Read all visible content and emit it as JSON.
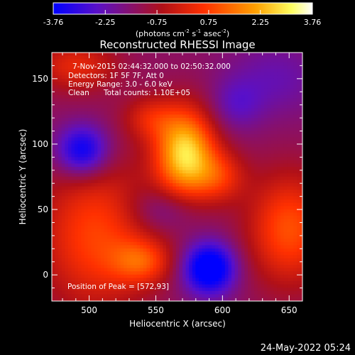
{
  "chart_data": {
    "type": "heatmap",
    "title": "Reconstructed RHESSI Image",
    "xlabel": "Heliocentric X (arcsec)",
    "ylabel": "Heliocentric Y (arcsec)",
    "xlim": [
      472,
      660
    ],
    "ylim": [
      -20,
      170
    ],
    "x_ticks": [
      500,
      550,
      600,
      650
    ],
    "y_ticks": [
      0,
      50,
      100,
      150
    ],
    "colorbar": {
      "ticks": [
        "-3.76",
        "-2.25",
        "-0.75",
        "0.75",
        "2.25",
        "3.76"
      ],
      "range": [
        -3.76,
        3.76
      ],
      "units_label": "(photons cm",
      "units_sup1": "-2",
      "units_mid": " s",
      "units_sup2": "-1",
      "units_mid2": " asec",
      "units_sup3": "-2",
      "units_end": ")",
      "colors": [
        "#0000ff",
        "#5a10c8",
        "#b01018",
        "#ff3000",
        "#ffa000",
        "#ffff60",
        "#ffffff"
      ]
    },
    "annotations": {
      "time_range": "7-Nov-2015 02:44:32.000 to 02:50:32.000",
      "detectors": "Detectors: 1F 5F 7F, Att 0",
      "energy_range": "Energy Range: 3.0 - 6.0 keV",
      "algorithm": "Clean",
      "total_counts": "Total counts: 1.10E+05",
      "peak": "Position of Peak = [572,93]"
    },
    "peak": {
      "x": 572,
      "y": 93,
      "value": 3.76
    },
    "components": [
      {
        "x": 572,
        "y": 93,
        "amp": 4.2,
        "sx": 16,
        "sy": 24
      },
      {
        "x": 598,
        "y": 75,
        "amp": 1.6,
        "sx": 14,
        "sy": 14
      },
      {
        "x": 545,
        "y": 120,
        "amp": 1.3,
        "sx": 14,
        "sy": 12
      },
      {
        "x": 590,
        "y": 5,
        "amp": -3.2,
        "sx": 14,
        "sy": 14
      },
      {
        "x": 495,
        "y": 95,
        "amp": -2.6,
        "sx": 14,
        "sy": 14
      },
      {
        "x": 505,
        "y": 30,
        "amp": 2.2,
        "sx": 30,
        "sy": 40
      },
      {
        "x": 650,
        "y": 35,
        "amp": 2.4,
        "sx": 22,
        "sy": 30
      },
      {
        "x": 540,
        "y": 10,
        "amp": 1.8,
        "sx": 16,
        "sy": 12
      },
      {
        "x": 490,
        "y": 160,
        "amp": 1.6,
        "sx": 22,
        "sy": 14
      },
      {
        "x": 640,
        "y": 150,
        "amp": -0.8,
        "sx": 25,
        "sy": 20
      },
      {
        "x": 555,
        "y": 50,
        "amp": -1.0,
        "sx": 18,
        "sy": 12
      },
      {
        "x": 610,
        "y": 130,
        "amp": -0.9,
        "sx": 14,
        "sy": 14
      }
    ],
    "baseline": -1.4
  },
  "footer": {
    "date": "24-May-2022 05:24"
  }
}
